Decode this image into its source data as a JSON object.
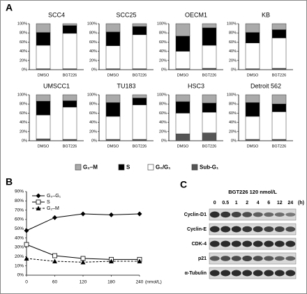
{
  "panel_labels": [
    "A",
    "B",
    "C"
  ],
  "chart_data": [
    {
      "type": "bar",
      "title": "SCC4",
      "categories": [
        "DMSO",
        "BGT226"
      ],
      "ylim": [
        0,
        100
      ],
      "yticks": [
        {
          "value": 0,
          "label": "0%"
        },
        {
          "value": 20,
          "label": "20%"
        },
        {
          "value": 40,
          "label": "40%"
        },
        {
          "value": 60,
          "label": "60%"
        },
        {
          "value": 80,
          "label": "80%"
        },
        {
          "value": 100,
          "label": "100%"
        }
      ],
      "series": [
        {
          "name": "Sub-G₁",
          "color": "#555555",
          "values": [
            2,
            2
          ]
        },
        {
          "name": "G₀/G₁",
          "color": "#ffffff",
          "values": [
            51,
            77
          ]
        },
        {
          "name": "S",
          "color": "#000000",
          "values": [
            28,
            17
          ]
        },
        {
          "name": "G₂–M",
          "color": "#aaaaaa",
          "values": [
            19,
            4
          ]
        }
      ]
    },
    {
      "type": "bar",
      "title": "SCC25",
      "categories": [
        "DMSO",
        "BGT226"
      ],
      "ylim": [
        0,
        100
      ],
      "yticks": [
        {
          "value": 0,
          "label": "0%"
        },
        {
          "value": 20,
          "label": "20%"
        },
        {
          "value": 40,
          "label": "40%"
        },
        {
          "value": 60,
          "label": "60%"
        },
        {
          "value": 80,
          "label": "80%"
        },
        {
          "value": 100,
          "label": "100%"
        }
      ],
      "series": [
        {
          "name": "Sub-G₁",
          "color": "#555555",
          "values": [
            2,
            2
          ]
        },
        {
          "name": "G₀/G₁",
          "color": "#ffffff",
          "values": [
            50,
            74
          ]
        },
        {
          "name": "S",
          "color": "#000000",
          "values": [
            30,
            18
          ]
        },
        {
          "name": "G₂–M",
          "color": "#aaaaaa",
          "values": [
            18,
            6
          ]
        }
      ]
    },
    {
      "type": "bar",
      "title": "OECM1",
      "categories": [
        "DMSO",
        "BGT226"
      ],
      "ylim": [
        0,
        100
      ],
      "yticks": [
        {
          "value": 0,
          "label": "0%"
        },
        {
          "value": 20,
          "label": "20%"
        },
        {
          "value": 40,
          "label": "40%"
        },
        {
          "value": 60,
          "label": "60%"
        },
        {
          "value": 80,
          "label": "80%"
        },
        {
          "value": 100,
          "label": "100%"
        }
      ],
      "series": [
        {
          "name": "Sub-G₁",
          "color": "#555555",
          "values": [
            2,
            3
          ]
        },
        {
          "name": "G₀/G₁",
          "color": "#ffffff",
          "values": [
            38,
            50
          ]
        },
        {
          "name": "S",
          "color": "#000000",
          "values": [
            33,
            38
          ]
        },
        {
          "name": "G₂–M",
          "color": "#aaaaaa",
          "values": [
            27,
            9
          ]
        }
      ]
    },
    {
      "type": "bar",
      "title": "KB",
      "categories": [
        "DMSO",
        "BGT226"
      ],
      "ylim": [
        0,
        100
      ],
      "yticks": [
        {
          "value": 0,
          "label": "0%"
        },
        {
          "value": 20,
          "label": "20%"
        },
        {
          "value": 40,
          "label": "40%"
        },
        {
          "value": 60,
          "label": "60%"
        },
        {
          "value": 80,
          "label": "80%"
        },
        {
          "value": 100,
          "label": "100%"
        }
      ],
      "series": [
        {
          "name": "Sub-G₁",
          "color": "#555555",
          "values": [
            2,
            3
          ]
        },
        {
          "name": "G₀/G₁",
          "color": "#ffffff",
          "values": [
            56,
            66
          ]
        },
        {
          "name": "S",
          "color": "#000000",
          "values": [
            23,
            18
          ]
        },
        {
          "name": "G₂–M",
          "color": "#aaaaaa",
          "values": [
            19,
            13
          ]
        }
      ]
    },
    {
      "type": "bar",
      "title": "UMSCC1",
      "categories": [
        "DMSO",
        "BGT226"
      ],
      "ylim": [
        0,
        100
      ],
      "yticks": [
        {
          "value": 0,
          "label": "0%"
        },
        {
          "value": 20,
          "label": "20%"
        },
        {
          "value": 40,
          "label": "40%"
        },
        {
          "value": 60,
          "label": "60%"
        },
        {
          "value": 80,
          "label": "80%"
        },
        {
          "value": 100,
          "label": "100%"
        }
      ],
      "series": [
        {
          "name": "Sub-G₁",
          "color": "#555555",
          "values": [
            4,
            3
          ]
        },
        {
          "name": "G₀/G₁",
          "color": "#ffffff",
          "values": [
            52,
            70
          ]
        },
        {
          "name": "S",
          "color": "#000000",
          "values": [
            30,
            14
          ]
        },
        {
          "name": "G₂–M",
          "color": "#aaaaaa",
          "values": [
            14,
            13
          ]
        }
      ]
    },
    {
      "type": "bar",
      "title": "TU183",
      "categories": [
        "DMSO",
        "BGT226"
      ],
      "ylim": [
        0,
        100
      ],
      "yticks": [
        {
          "value": 0,
          "label": "0%"
        },
        {
          "value": 20,
          "label": "20%"
        },
        {
          "value": 40,
          "label": "40%"
        },
        {
          "value": 60,
          "label": "60%"
        },
        {
          "value": 80,
          "label": "80%"
        },
        {
          "value": 100,
          "label": "100%"
        }
      ],
      "series": [
        {
          "name": "Sub-G₁",
          "color": "#555555",
          "values": [
            3,
            3
          ]
        },
        {
          "name": "G₀/G₁",
          "color": "#ffffff",
          "values": [
            50,
            75
          ]
        },
        {
          "name": "S",
          "color": "#000000",
          "values": [
            30,
            15
          ]
        },
        {
          "name": "G₂–M",
          "color": "#aaaaaa",
          "values": [
            17,
            7
          ]
        }
      ]
    },
    {
      "type": "bar",
      "title": "HSC3",
      "categories": [
        "DMSO",
        "BGT226"
      ],
      "ylim": [
        0,
        100
      ],
      "yticks": [
        {
          "value": 0,
          "label": "0%"
        },
        {
          "value": 20,
          "label": "20%"
        },
        {
          "value": 40,
          "label": "40%"
        },
        {
          "value": 60,
          "label": "60%"
        },
        {
          "value": 80,
          "label": "80%"
        },
        {
          "value": 100,
          "label": "100%"
        }
      ],
      "series": [
        {
          "name": "Sub-G₁",
          "color": "#555555",
          "values": [
            15,
            17
          ]
        },
        {
          "name": "G₀/G₁",
          "color": "#ffffff",
          "values": [
            45,
            45
          ]
        },
        {
          "name": "S",
          "color": "#000000",
          "values": [
            25,
            20
          ]
        },
        {
          "name": "G₂–M",
          "color": "#aaaaaa",
          "values": [
            15,
            18
          ]
        }
      ]
    },
    {
      "type": "bar",
      "title": "Detroit 562",
      "categories": [
        "DMSO",
        "BGT226"
      ],
      "ylim": [
        0,
        100
      ],
      "yticks": [
        {
          "value": 0,
          "label": "0%"
        },
        {
          "value": 20,
          "label": "20%"
        },
        {
          "value": 40,
          "label": "40%"
        },
        {
          "value": 60,
          "label": "60%"
        },
        {
          "value": 80,
          "label": "80%"
        },
        {
          "value": 100,
          "label": "100%"
        }
      ],
      "series": [
        {
          "name": "Sub-G₁",
          "color": "#555555",
          "values": [
            3,
            3
          ]
        },
        {
          "name": "G₀/G₁",
          "color": "#ffffff",
          "values": [
            50,
            60
          ]
        },
        {
          "name": "S",
          "color": "#000000",
          "values": [
            30,
            17
          ]
        },
        {
          "name": "G₂–M",
          "color": "#aaaaaa",
          "values": [
            17,
            20
          ]
        }
      ]
    },
    {
      "type": "line",
      "x_label": "(nmol/L)",
      "x": [
        0,
        60,
        120,
        180,
        240
      ],
      "xlim": [
        0,
        240
      ],
      "xticks": [
        0,
        60,
        120,
        180,
        240
      ],
      "ylim": [
        0,
        90
      ],
      "yticks": [
        {
          "value": 0,
          "label": "0%"
        },
        {
          "value": 10,
          "label": "10%"
        },
        {
          "value": 20,
          "label": "20%"
        },
        {
          "value": 30,
          "label": "30%"
        },
        {
          "value": 40,
          "label": "40%"
        },
        {
          "value": 50,
          "label": "50%"
        },
        {
          "value": 60,
          "label": "60%"
        },
        {
          "value": 70,
          "label": "70%"
        },
        {
          "value": 80,
          "label": "80%"
        },
        {
          "value": 90,
          "label": "90%"
        }
      ],
      "series": [
        {
          "name": "G₀–G₁",
          "color": "#000000",
          "marker": "diamond",
          "dashed": false,
          "values": [
            48,
            62,
            66,
            65,
            66
          ]
        },
        {
          "name": "S",
          "color": "#000000",
          "marker": "square",
          "dashed": false,
          "values": [
            33,
            21,
            18,
            17,
            17
          ]
        },
        {
          "name": "G₂–M",
          "color": "#000000",
          "marker": "triangle",
          "dashed": true,
          "values": [
            18,
            15,
            14,
            15,
            15
          ]
        }
      ]
    }
  ],
  "blot": {
    "title": "BGT226 120 nmol/L",
    "lanes": [
      "0",
      "0.5",
      "1",
      "2",
      "4",
      "6",
      "12",
      "24"
    ],
    "unit": "(h)",
    "proteins": [
      "Cyclin-D1",
      "Cyclin-E",
      "CDK-4",
      "p21",
      "α-Tubulin"
    ]
  }
}
